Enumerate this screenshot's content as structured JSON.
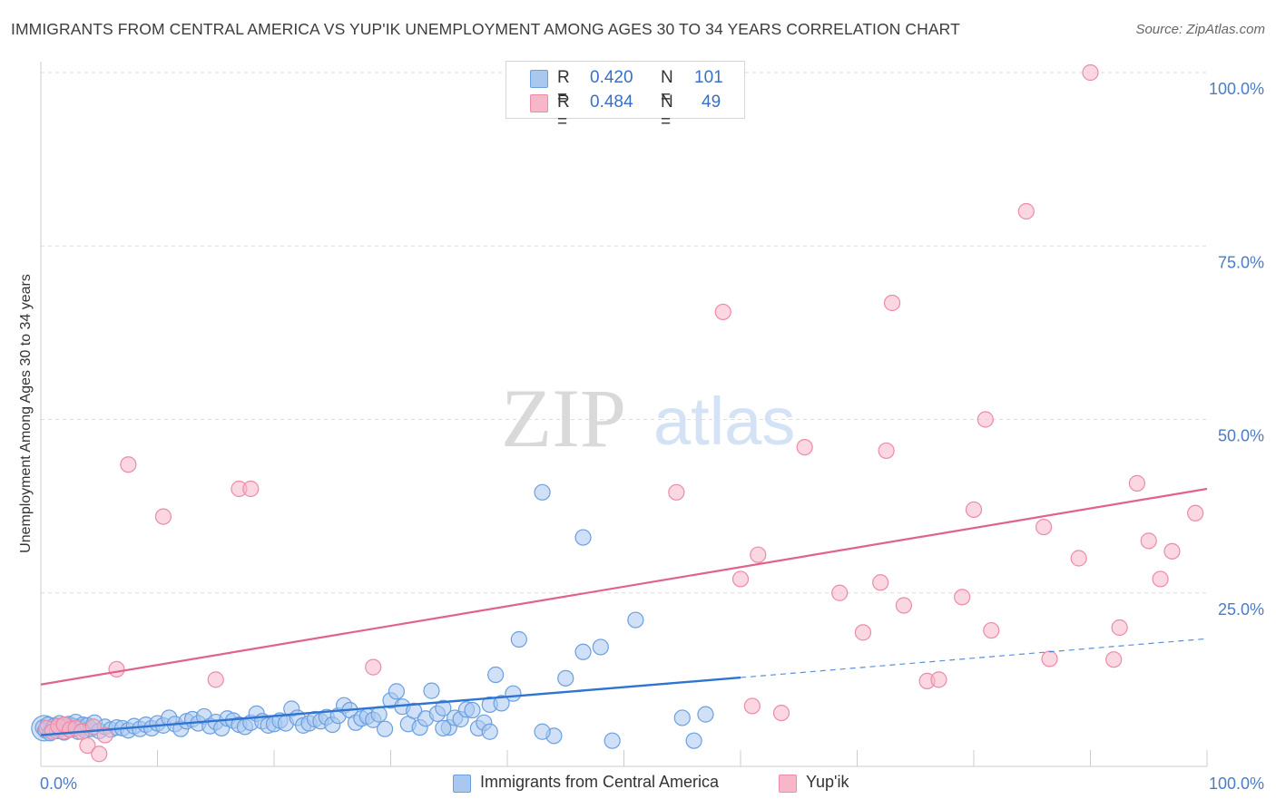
{
  "title": "IMMIGRANTS FROM CENTRAL AMERICA VS YUP'IK UNEMPLOYMENT AMONG AGES 30 TO 34 YEARS CORRELATION CHART",
  "source": "Source: ZipAtlas.com",
  "watermark": {
    "zip": "ZIP",
    "atlas": "atlas"
  },
  "legend_top": {
    "rows": [
      {
        "r_label": "R =",
        "r_value": "0.420",
        "n_label": "N =",
        "n_value": "101",
        "color": "#a9c8f0"
      },
      {
        "r_label": "R =",
        "r_value": "0.484",
        "n_label": "N =",
        "n_value": "49",
        "color": "#f7b7c9"
      }
    ]
  },
  "legend_bottom": [
    {
      "label": "Immigrants from Central America",
      "color": "#a9c8f0"
    },
    {
      "label": "Yup'ik",
      "color": "#f7b7c9"
    }
  ],
  "colors": {
    "blue_fill": "#a9c8f0",
    "blue_stroke": "#6a9fe0",
    "blue_line": "#2f74d0",
    "pink_fill": "#f7b7c9",
    "pink_stroke": "#ec8aa7",
    "pink_line": "#e0628d",
    "axis_label": "#4a7cc7",
    "grid": "#dddddd"
  },
  "chart_data": {
    "type": "scatter",
    "ylabel": "Unemployment Among Ages 30 to 34 years",
    "x_tick_labels": [
      "0.0%",
      "100.0%"
    ],
    "y_tick_labels": [
      "100.0%",
      "75.0%",
      "50.0%",
      "25.0%"
    ],
    "xlim": [
      0,
      100
    ],
    "ylim": [
      0,
      100
    ],
    "series": [
      {
        "name": "Immigrants from Central America",
        "trend": {
          "x0": 0,
          "y0": 4.5,
          "x1": 60,
          "y1": 12.8,
          "dashed_to_x": 100,
          "dashed_to_y": 18.4
        },
        "points": [
          [
            0.2,
            5.6
          ],
          [
            0.4,
            5.2
          ],
          [
            0.6,
            6.0
          ],
          [
            0.8,
            4.8
          ],
          [
            1.0,
            5.4
          ],
          [
            1.2,
            5.9
          ],
          [
            1.4,
            5.1
          ],
          [
            1.6,
            6.2
          ],
          [
            1.8,
            5.5
          ],
          [
            2.0,
            4.9
          ],
          [
            2.2,
            5.7
          ],
          [
            2.4,
            6.1
          ],
          [
            2.6,
            5.3
          ],
          [
            2.8,
            5.8
          ],
          [
            3.0,
            6.4
          ],
          [
            3.2,
            5.0
          ],
          [
            3.4,
            5.6
          ],
          [
            3.6,
            6.0
          ],
          [
            3.8,
            5.2
          ],
          [
            4.0,
            5.9
          ],
          [
            4.3,
            5.4
          ],
          [
            4.6,
            6.3
          ],
          [
            5.0,
            5.1
          ],
          [
            5.5,
            5.7
          ],
          [
            6.0,
            5.3
          ],
          [
            6.5,
            5.6
          ],
          [
            7.0,
            5.5
          ],
          [
            7.5,
            5.2
          ],
          [
            8.0,
            5.8
          ],
          [
            8.5,
            5.4
          ],
          [
            9.0,
            6.0
          ],
          [
            9.5,
            5.5
          ],
          [
            10.0,
            6.2
          ],
          [
            10.5,
            5.9
          ],
          [
            11.0,
            7.0
          ],
          [
            11.5,
            6.1
          ],
          [
            12.0,
            5.4
          ],
          [
            12.5,
            6.5
          ],
          [
            13.0,
            6.8
          ],
          [
            13.5,
            6.2
          ],
          [
            14.0,
            7.2
          ],
          [
            14.5,
            5.8
          ],
          [
            15.0,
            6.4
          ],
          [
            15.5,
            5.5
          ],
          [
            16.0,
            6.9
          ],
          [
            16.5,
            6.6
          ],
          [
            17.0,
            6.0
          ],
          [
            17.5,
            5.7
          ],
          [
            18.0,
            6.3
          ],
          [
            18.5,
            7.6
          ],
          [
            19.0,
            6.5
          ],
          [
            19.5,
            5.9
          ],
          [
            20.0,
            6.1
          ],
          [
            20.5,
            6.6
          ],
          [
            21.0,
            6.2
          ],
          [
            21.5,
            8.3
          ],
          [
            22.0,
            7.0
          ],
          [
            22.5,
            5.9
          ],
          [
            23.0,
            6.2
          ],
          [
            23.5,
            6.8
          ],
          [
            24.0,
            6.5
          ],
          [
            24.5,
            7.1
          ],
          [
            25.0,
            6.0
          ],
          [
            25.5,
            7.3
          ],
          [
            26.0,
            8.8
          ],
          [
            26.5,
            8.1
          ],
          [
            27.0,
            6.3
          ],
          [
            27.5,
            6.9
          ],
          [
            28.0,
            7.2
          ],
          [
            28.5,
            6.7
          ],
          [
            29.0,
            7.5
          ],
          [
            29.5,
            5.4
          ],
          [
            30.0,
            9.5
          ],
          [
            30.5,
            10.8
          ],
          [
            31.0,
            8.6
          ],
          [
            31.5,
            6.1
          ],
          [
            32.0,
            8.0
          ],
          [
            32.5,
            5.6
          ],
          [
            33.0,
            6.9
          ],
          [
            33.5,
            10.9
          ],
          [
            34.0,
            7.6
          ],
          [
            34.5,
            8.4
          ],
          [
            35.0,
            5.6
          ],
          [
            35.5,
            7.0
          ],
          [
            36.0,
            6.8
          ],
          [
            36.5,
            8.2
          ],
          [
            37.0,
            8.1
          ],
          [
            37.5,
            5.5
          ],
          [
            38.0,
            6.3
          ],
          [
            38.5,
            8.9
          ],
          [
            39.0,
            13.2
          ],
          [
            39.5,
            9.1
          ],
          [
            40.5,
            10.5
          ],
          [
            41.0,
            18.3
          ],
          [
            44.0,
            4.4
          ],
          [
            45.0,
            12.7
          ],
          [
            46.5,
            16.5
          ],
          [
            48.0,
            17.2
          ],
          [
            51.0,
            21.1
          ],
          [
            55.0,
            7.0
          ],
          [
            57.0,
            7.5
          ]
        ],
        "outliers": [
          [
            43.0,
            39.5
          ],
          [
            46.5,
            33.0
          ],
          [
            38.5,
            5.0
          ],
          [
            43.0,
            5.0
          ],
          [
            34.5,
            5.5
          ],
          [
            49.0,
            3.7
          ],
          [
            56.0,
            3.7
          ]
        ]
      },
      {
        "name": "Yup'ik",
        "trend": {
          "x0": 0,
          "y0": 11.8,
          "x1": 100,
          "y1": 40.0
        },
        "points": [
          [
            0.5,
            5.5
          ],
          [
            1.0,
            5.0
          ],
          [
            1.5,
            5.8
          ],
          [
            2.0,
            6.0
          ],
          [
            2.5,
            5.3
          ],
          [
            3.0,
            5.5
          ],
          [
            3.5,
            5.0
          ],
          [
            4.0,
            3.0
          ],
          [
            4.5,
            5.7
          ],
          [
            5.0,
            1.8
          ],
          [
            5.5,
            4.5
          ],
          [
            6.5,
            14.0
          ],
          [
            7.5,
            43.5
          ],
          [
            10.5,
            36.0
          ],
          [
            15.0,
            12.5
          ],
          [
            17.0,
            40.0
          ],
          [
            18.0,
            40.0
          ],
          [
            28.5,
            14.3
          ],
          [
            54.5,
            39.5
          ],
          [
            58.5,
            65.5
          ],
          [
            60.0,
            27.0
          ],
          [
            61.0,
            8.7
          ],
          [
            61.5,
            30.5
          ],
          [
            63.5,
            7.7
          ],
          [
            65.5,
            46.0
          ],
          [
            68.5,
            25.0
          ],
          [
            70.5,
            19.3
          ],
          [
            72.0,
            26.5
          ],
          [
            72.5,
            45.5
          ],
          [
            73.0,
            66.8
          ],
          [
            74.0,
            23.2
          ],
          [
            76.0,
            12.3
          ],
          [
            77.0,
            12.5
          ],
          [
            79.0,
            24.4
          ],
          [
            80.0,
            37.0
          ],
          [
            81.0,
            50.0
          ],
          [
            81.5,
            19.6
          ],
          [
            84.5,
            80.0
          ],
          [
            86.0,
            34.5
          ],
          [
            86.5,
            15.5
          ],
          [
            89.0,
            30.0
          ],
          [
            90.0,
            100.0
          ],
          [
            92.0,
            15.4
          ],
          [
            92.5,
            20.0
          ],
          [
            94.0,
            40.8
          ],
          [
            95.0,
            32.5
          ],
          [
            96.0,
            27.0
          ],
          [
            97.0,
            31.0
          ],
          [
            99.0,
            36.5
          ]
        ]
      }
    ]
  }
}
